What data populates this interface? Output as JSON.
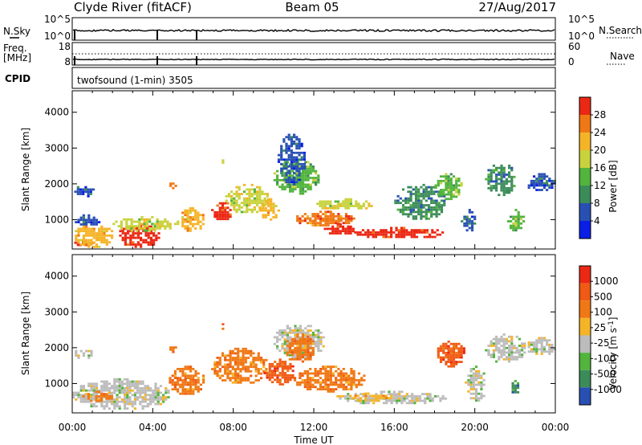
{
  "header": {
    "station": "Clyde River (fitACF)",
    "beam": "Beam 05",
    "date": "27/Aug/2017"
  },
  "strip_panel": {
    "nsky_label": "N.Sky",
    "nsky_ticks": [
      "10^5",
      "10^0"
    ],
    "nsearch_label": "N.Search",
    "nsearch_ticks": [
      "10^5",
      "10^0"
    ],
    "freq_label_1": "Freq.",
    "freq_label_2": "[MHz]",
    "freq_ticks": [
      "18",
      "8"
    ],
    "nave_label": "Nave",
    "nave_ticks": [
      "60",
      "0"
    ],
    "cpid_label": "CPID",
    "cpid_value": "twofsound (1-min) 3505"
  },
  "colors": {
    "power": [
      "#0a1ee6",
      "#2850b4",
      "#3c8c5a",
      "#52b43c",
      "#c8d23c",
      "#f5b428",
      "#f07814",
      "#eb2814"
    ],
    "velocity": [
      "#2850b4",
      "#3c8c5a",
      "#52b43c",
      "#bcbcbc",
      "#f5b428",
      "#f07814",
      "#f05a14",
      "#eb2814"
    ]
  },
  "chart_data": [
    {
      "type": "heatmap",
      "quantity": "Power",
      "ylabel": "Slant Range [km]",
      "xlabel": "",
      "ylim": [
        180,
        4600
      ],
      "xlim_hours": [
        0,
        24
      ],
      "yticks": [
        "1000",
        "2000",
        "3000",
        "4000"
      ],
      "colorbar_label": "Power [dB]",
      "colorbar_ticks": [
        "28",
        "24",
        "20",
        "16",
        "12",
        "8",
        "4"
      ],
      "blobs": [
        {
          "t0": 0.1,
          "t1": 1.0,
          "r0": 300,
          "r1": 450,
          "c": 7
        },
        {
          "t0": 0.0,
          "t1": 2.0,
          "r0": 250,
          "r1": 900,
          "c": 5
        },
        {
          "t0": 0.0,
          "t1": 1.3,
          "r0": 850,
          "r1": 1150,
          "c": 1
        },
        {
          "t0": 0.1,
          "t1": 1.0,
          "r0": 1650,
          "r1": 2000,
          "c": 1
        },
        {
          "t0": 2.2,
          "t1": 4.3,
          "r0": 250,
          "r1": 900,
          "c": 7
        },
        {
          "t0": 2.0,
          "t1": 5.3,
          "r0": 700,
          "r1": 1100,
          "c": 4
        },
        {
          "t0": 5.3,
          "t1": 6.5,
          "r0": 700,
          "r1": 1350,
          "c": 5
        },
        {
          "t0": 6.9,
          "t1": 7.9,
          "r0": 1000,
          "r1": 1550,
          "c": 7
        },
        {
          "t0": 7.6,
          "t1": 9.7,
          "r0": 1200,
          "r1": 2000,
          "c": 4
        },
        {
          "t0": 9.3,
          "t1": 10.2,
          "r0": 1000,
          "r1": 1600,
          "c": 5
        },
        {
          "t0": 10.0,
          "t1": 12.2,
          "r0": 1750,
          "r1": 2700,
          "c": 3
        },
        {
          "t0": 10.2,
          "t1": 11.5,
          "r0": 2000,
          "r1": 3400,
          "c": 1
        },
        {
          "t0": 11.0,
          "t1": 14.0,
          "r0": 850,
          "r1": 1250,
          "c": 6
        },
        {
          "t0": 12.5,
          "t1": 14.0,
          "r0": 600,
          "r1": 900,
          "c": 7
        },
        {
          "t0": 14.0,
          "t1": 18.5,
          "r0": 500,
          "r1": 800,
          "c": 7
        },
        {
          "t0": 12.0,
          "t1": 15.0,
          "r0": 1300,
          "r1": 1600,
          "c": 4
        },
        {
          "t0": 16.0,
          "t1": 18.5,
          "r0": 1000,
          "r1": 2000,
          "c": 2
        },
        {
          "t0": 18.0,
          "t1": 19.3,
          "r0": 1600,
          "r1": 2300,
          "c": 3
        },
        {
          "t0": 19.3,
          "t1": 20.0,
          "r0": 700,
          "r1": 1300,
          "c": 1
        },
        {
          "t0": 20.5,
          "t1": 22.0,
          "r0": 1700,
          "r1": 2600,
          "c": 2
        },
        {
          "t0": 21.6,
          "t1": 22.4,
          "r0": 700,
          "r1": 1300,
          "c": 3
        },
        {
          "t0": 22.5,
          "t1": 24.0,
          "r0": 1800,
          "r1": 2300,
          "c": 1
        },
        {
          "t0": 4.7,
          "t1": 5.1,
          "r0": 1900,
          "r1": 2100,
          "c": 6
        },
        {
          "t0": 7.3,
          "t1": 7.6,
          "r0": 2550,
          "r1": 2750,
          "c": 4
        }
      ]
    },
    {
      "type": "heatmap",
      "quantity": "Velocity",
      "ylabel": "Slant Range [km]",
      "xlabel": "Time UT",
      "ylim": [
        180,
        4600
      ],
      "xlim_hours": [
        0,
        24
      ],
      "yticks": [
        "1000",
        "2000",
        "3000",
        "4000"
      ],
      "xticks": [
        "00:00",
        "04:00",
        "08:00",
        "12:00",
        "16:00",
        "20:00",
        "00:00"
      ],
      "colorbar_label": "Velocity [m s",
      "colorbar_label_sup": "-1",
      "colorbar_label_end": "]",
      "colorbar_ticks": [
        "1000",
        "500",
        "100",
        "25",
        "-25",
        "-100",
        "-500",
        "-1000"
      ],
      "blobs": [
        {
          "t0": 0.0,
          "t1": 4.8,
          "r0": 300,
          "r1": 1150,
          "c": 3
        },
        {
          "t0": 0.5,
          "t1": 2.0,
          "r0": 500,
          "r1": 800,
          "c": 5
        },
        {
          "t0": 0.0,
          "t1": 1.0,
          "r0": 1700,
          "r1": 2000,
          "c": 3
        },
        {
          "t0": 4.8,
          "t1": 6.5,
          "r0": 700,
          "r1": 1500,
          "c": 5
        },
        {
          "t0": 6.9,
          "t1": 9.7,
          "r0": 1000,
          "r1": 2000,
          "c": 5
        },
        {
          "t0": 9.5,
          "t1": 11.0,
          "r0": 1000,
          "r1": 1700,
          "c": 6
        },
        {
          "t0": 10.0,
          "t1": 12.5,
          "r0": 1750,
          "r1": 2700,
          "c": 3
        },
        {
          "t0": 10.5,
          "t1": 12.0,
          "r0": 1600,
          "r1": 2400,
          "c": 5
        },
        {
          "t0": 11.0,
          "t1": 14.5,
          "r0": 800,
          "r1": 1500,
          "c": 5
        },
        {
          "t0": 13.0,
          "t1": 18.5,
          "r0": 450,
          "r1": 800,
          "c": 3
        },
        {
          "t0": 13.5,
          "t1": 16.0,
          "r0": 550,
          "r1": 750,
          "c": 4
        },
        {
          "t0": 18.0,
          "t1": 19.5,
          "r0": 1500,
          "r1": 2200,
          "c": 6
        },
        {
          "t0": 19.5,
          "t1": 20.5,
          "r0": 500,
          "r1": 1500,
          "c": 3
        },
        {
          "t0": 20.5,
          "t1": 22.5,
          "r0": 1600,
          "r1": 2400,
          "c": 3
        },
        {
          "t0": 21.7,
          "t1": 22.2,
          "r0": 700,
          "r1": 1100,
          "c": 1
        },
        {
          "t0": 22.5,
          "t1": 24.0,
          "r0": 1800,
          "r1": 2300,
          "c": 3
        },
        {
          "t0": 4.7,
          "t1": 5.1,
          "r0": 1900,
          "r1": 2100,
          "c": 5
        },
        {
          "t0": 7.3,
          "t1": 7.6,
          "r0": 2550,
          "r1": 2750,
          "c": 5
        }
      ]
    }
  ]
}
